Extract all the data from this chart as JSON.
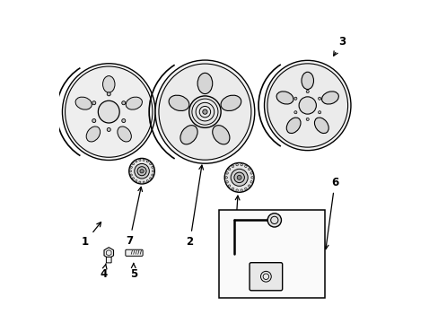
{
  "bg_color": "#ffffff",
  "line_color": "#000000",
  "line_width": 1.0,
  "fig_width": 4.89,
  "fig_height": 3.6,
  "dpi": 100
}
